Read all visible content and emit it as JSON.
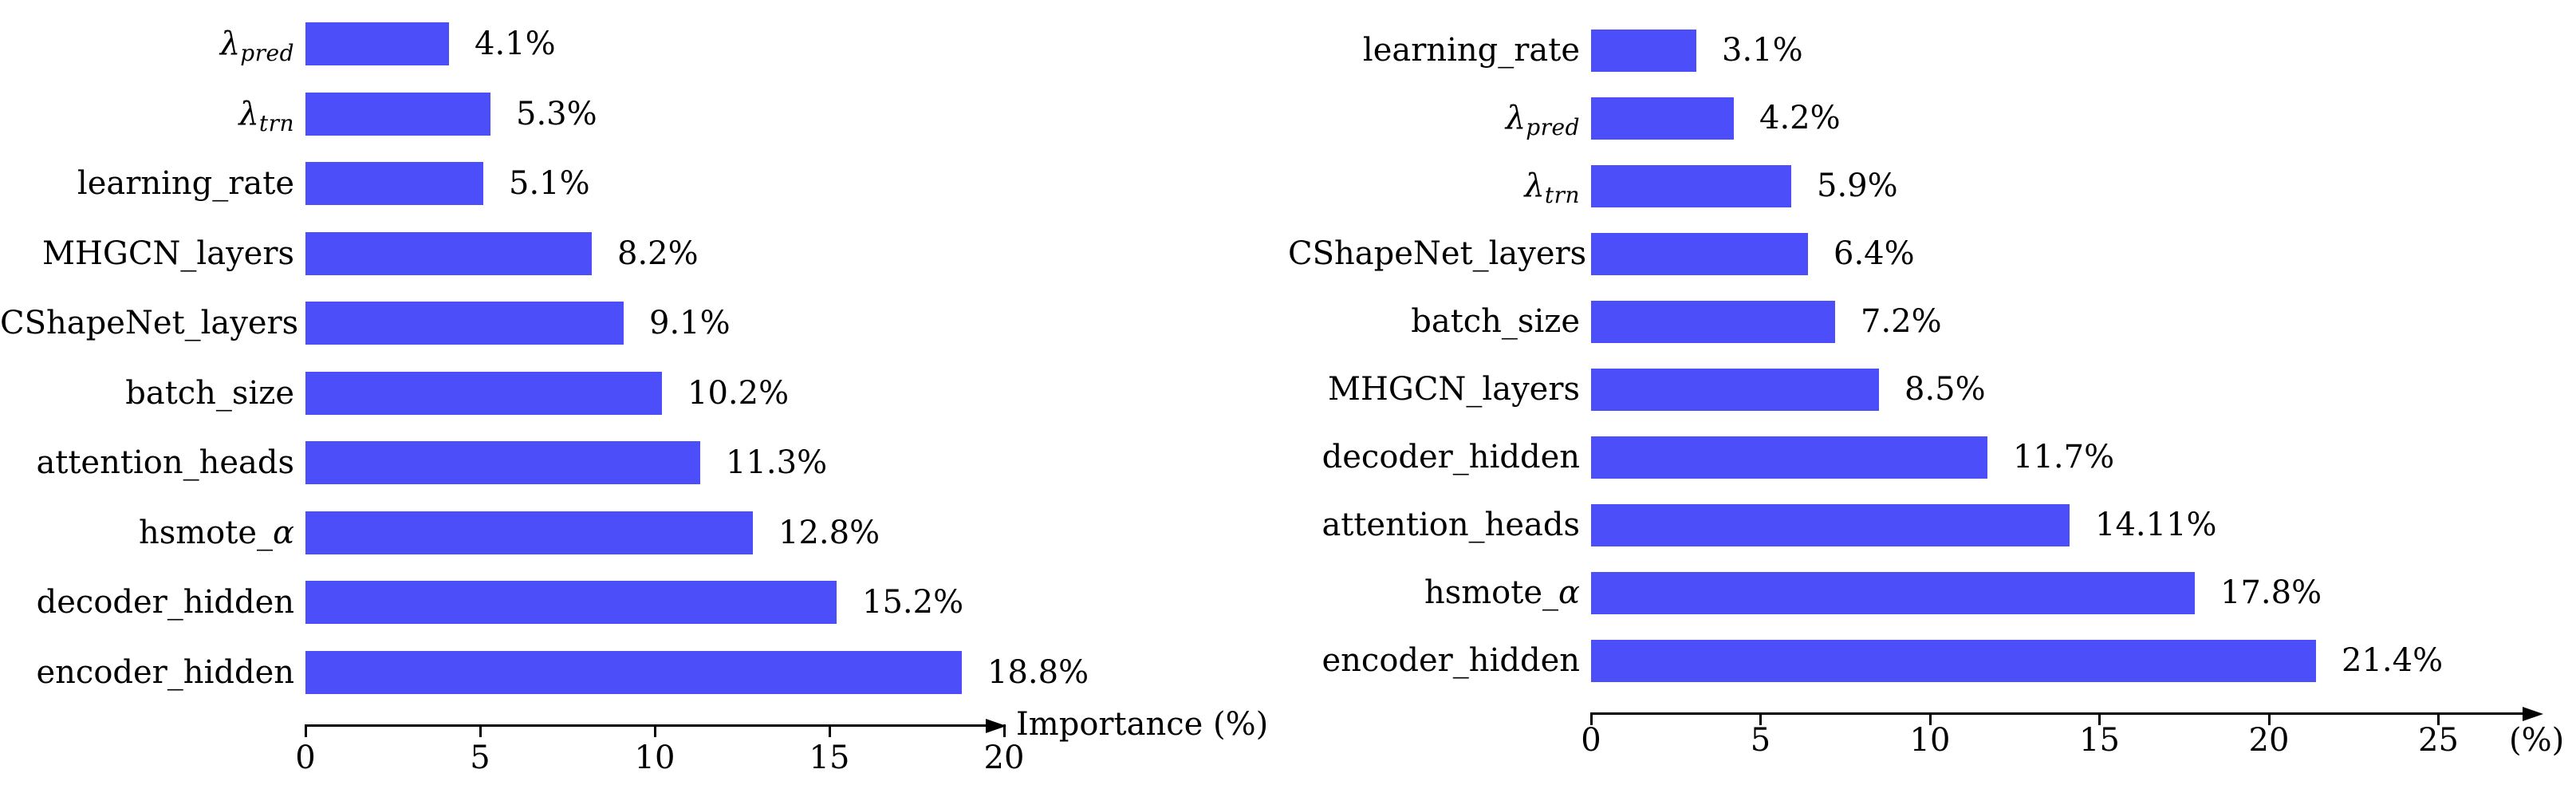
{
  "figure": {
    "background": "#ffffff",
    "bar_color": "#4b4ef9",
    "text_color": "#000000"
  },
  "chart_data": [
    {
      "type": "bar",
      "orientation": "horizontal",
      "title": "",
      "xlabel": "Importance (%)",
      "xlim": [
        0,
        20
      ],
      "xticks": [
        0,
        5,
        10,
        15,
        20
      ],
      "xtick_labels": [
        "0",
        "5",
        "10",
        "15",
        "20"
      ],
      "grid": false,
      "legend": null,
      "categories": [
        "λ_pred",
        "λ_trn",
        "learning_rate",
        "MHGCN_layers",
        "CShapeNet_layers",
        "batch_size",
        "attention_heads",
        "hsmote_α",
        "decoder_hidden",
        "encoder_hidden"
      ],
      "values": [
        4.1,
        5.3,
        5.1,
        8.2,
        9.1,
        10.2,
        11.3,
        12.8,
        15.2,
        18.8
      ],
      "value_labels": [
        "4.1%",
        "5.3%",
        "5.1%",
        "8.2%",
        "9.1%",
        "10.2%",
        "11.3%",
        "12.8%",
        "15.2%",
        "18.8%"
      ]
    },
    {
      "type": "bar",
      "orientation": "horizontal",
      "title": "",
      "xlabel": "(%)",
      "xlim": [
        0,
        25
      ],
      "xticks": [
        0,
        5,
        10,
        15,
        20,
        25
      ],
      "xtick_labels": [
        "0",
        "5",
        "10",
        "15",
        "20",
        "25"
      ],
      "grid": false,
      "legend": null,
      "categories": [
        "learning_rate",
        "λ_pred",
        "λ_trn",
        "CShapeNet_layers",
        "batch_size",
        "MHGCN_layers",
        "decoder_hidden",
        "attention_heads",
        "hsmote_α",
        "encoder_hidden"
      ],
      "values": [
        3.1,
        4.2,
        5.9,
        6.4,
        7.2,
        8.5,
        11.7,
        14.11,
        17.8,
        21.4
      ],
      "value_labels": [
        "3.1%",
        "4.2%",
        "5.9%",
        "6.4%",
        "7.2%",
        "8.5%",
        "11.7%",
        "14.11%",
        "17.8%",
        "21.4%"
      ]
    }
  ]
}
